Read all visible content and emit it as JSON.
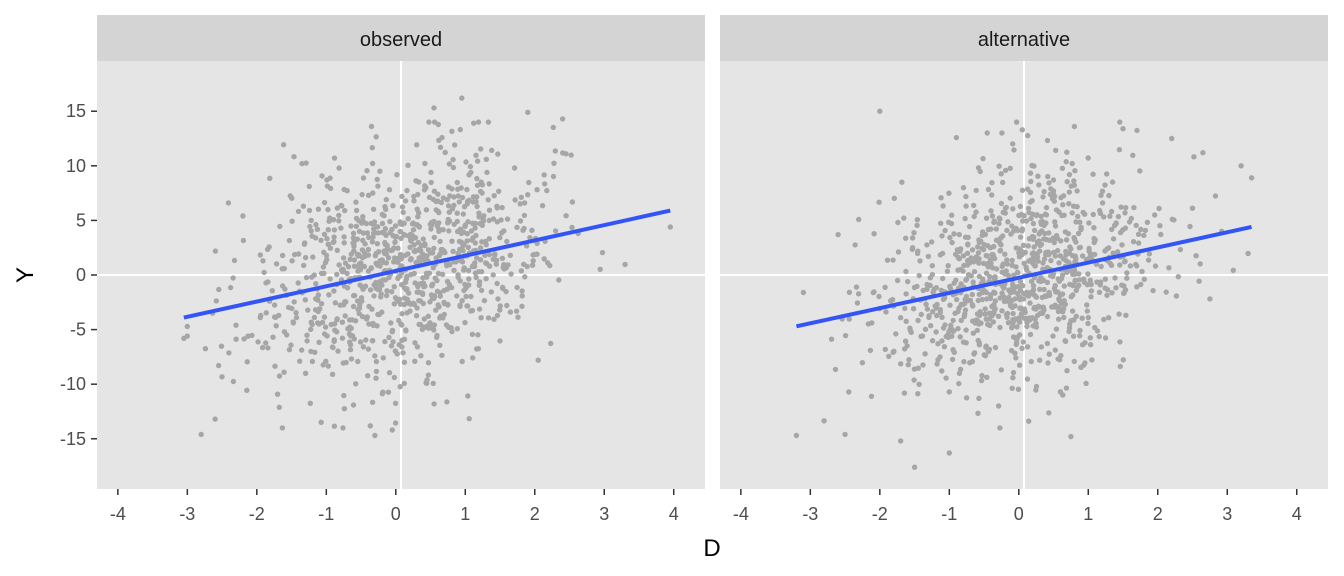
{
  "chart_data": {
    "type": "scatter",
    "faceted": true,
    "xlabel": "D",
    "ylabel": "Y",
    "xlim": [
      -4.3,
      4.45
    ],
    "ylim": [
      -19.6,
      19.6
    ],
    "x_ticks": [
      -4,
      -3,
      -2,
      -1,
      0,
      1,
      2,
      3,
      4
    ],
    "y_ticks": [
      -15,
      -10,
      -5,
      0,
      5,
      10,
      15
    ],
    "grid": true,
    "point_color": "#a6a6a6",
    "line_color": "#3355f5",
    "panel_bg": "#e5e5e5",
    "strip_bg": "#d4d4d4",
    "panels": [
      {
        "title": "observed",
        "fit_line": {
          "x": [
            -3.05,
            3.95
          ],
          "y": [
            -3.9,
            5.9
          ]
        },
        "cloud": {
          "n": 1000,
          "mean_x": 0.05,
          "sd_x": 1.0,
          "intercept": 0.4,
          "slope": 1.4,
          "resid_sd": 4.85
        },
        "points": [
          {
            "x": -3.05,
            "y": -5.8
          },
          {
            "x": -2.8,
            "y": -14.6
          },
          {
            "x": -2.6,
            "y": -13.2
          },
          {
            "x": -2.55,
            "y": -8.3
          },
          {
            "x": -2.3,
            "y": -4.6
          },
          {
            "x": -2.2,
            "y": 5.4
          },
          {
            "x": -1.35,
            "y": 10.2
          },
          {
            "x": -0.35,
            "y": 13.6
          },
          {
            "x": 0.55,
            "y": 15.3
          },
          {
            "x": 0.95,
            "y": 16.2
          },
          {
            "x": 1.9,
            "y": 14.9
          },
          {
            "x": 2.4,
            "y": 14.3
          },
          {
            "x": 3.95,
            "y": 4.4
          },
          {
            "x": -0.3,
            "y": -14.7
          },
          {
            "x": -0.05,
            "y": -14.2
          },
          {
            "x": 2.05,
            "y": -7.8
          },
          {
            "x": 2.45,
            "y": 11.1
          }
        ]
      },
      {
        "title": "alternative",
        "fit_line": {
          "x": [
            -3.2,
            3.35
          ],
          "y": [
            -4.7,
            4.4
          ]
        },
        "cloud": {
          "n": 1000,
          "mean_x": 0.0,
          "sd_x": 1.0,
          "intercept": -0.1,
          "slope": 1.35,
          "resid_sd": 4.85
        },
        "points": [
          {
            "x": -3.2,
            "y": -14.7
          },
          {
            "x": -3.1,
            "y": -1.6
          },
          {
            "x": -2.5,
            "y": -14.6
          },
          {
            "x": -2.0,
            "y": 15.0
          },
          {
            "x": -1.5,
            "y": -17.6
          },
          {
            "x": -1.7,
            "y": -15.2
          },
          {
            "x": -1.0,
            "y": -16.3
          },
          {
            "x": 0.05,
            "y": 13.3
          },
          {
            "x": 0.8,
            "y": 13.6
          },
          {
            "x": 1.5,
            "y": 13.4
          },
          {
            "x": 2.2,
            "y": 12.5
          },
          {
            "x": 3.35,
            "y": 8.9
          },
          {
            "x": 3.2,
            "y": 10.0
          },
          {
            "x": 0.75,
            "y": -14.8
          },
          {
            "x": -2.6,
            "y": 3.7
          },
          {
            "x": 2.65,
            "y": 11.2
          }
        ]
      }
    ]
  }
}
